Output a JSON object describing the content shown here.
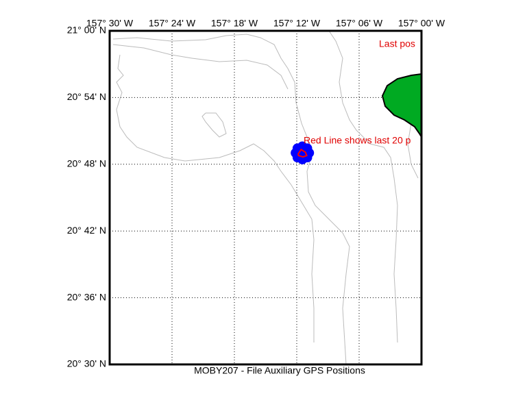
{
  "chart_data": {
    "type": "map",
    "title": "MOBY207 - File Auxiliary GPS Positions",
    "xlim": [
      -157.5,
      -157.0
    ],
    "ylim": [
      20.5,
      21.0
    ],
    "xticks": [
      {
        "value": -157.5,
        "label": "157° 30' W"
      },
      {
        "value": -157.4,
        "label": "157° 24' W"
      },
      {
        "value": -157.3,
        "label": "157° 18' W"
      },
      {
        "value": -157.2,
        "label": "157° 12' W"
      },
      {
        "value": -157.1,
        "label": "157° 06' W"
      },
      {
        "value": -157.0,
        "label": "157° 00' W"
      }
    ],
    "yticks": [
      {
        "value": 20.5,
        "label": "20° 30' N"
      },
      {
        "value": 20.6,
        "label": "20° 36' N"
      },
      {
        "value": 20.7,
        "label": "20° 42' N"
      },
      {
        "value": 20.8,
        "label": "20° 48' N"
      },
      {
        "value": 20.9,
        "label": "20° 54' N"
      },
      {
        "value": 21.0,
        "label": "21° 00' N"
      }
    ],
    "grid": true,
    "annotations": [
      "Last pos",
      "Red Line shows last 20 p"
    ],
    "series": [
      {
        "color": "#0000ff",
        "lon": [
          -157.202,
          -157.199,
          -157.191,
          -157.183,
          -157.18,
          -157.183,
          -157.191,
          -157.199,
          -157.195,
          -157.187
        ],
        "lat": [
          20.817,
          20.824,
          20.827,
          20.824,
          20.817,
          20.81,
          20.807,
          20.81,
          20.82,
          20.814
        ]
      },
      {
        "color": "#ff0000",
        "lon": [
          -157.198,
          -157.193,
          -157.186,
          -157.184,
          -157.19,
          -157.197,
          -157.198
        ],
        "lat": [
          20.815,
          20.822,
          20.818,
          20.813,
          20.811,
          20.813,
          20.815
        ]
      }
    ]
  }
}
